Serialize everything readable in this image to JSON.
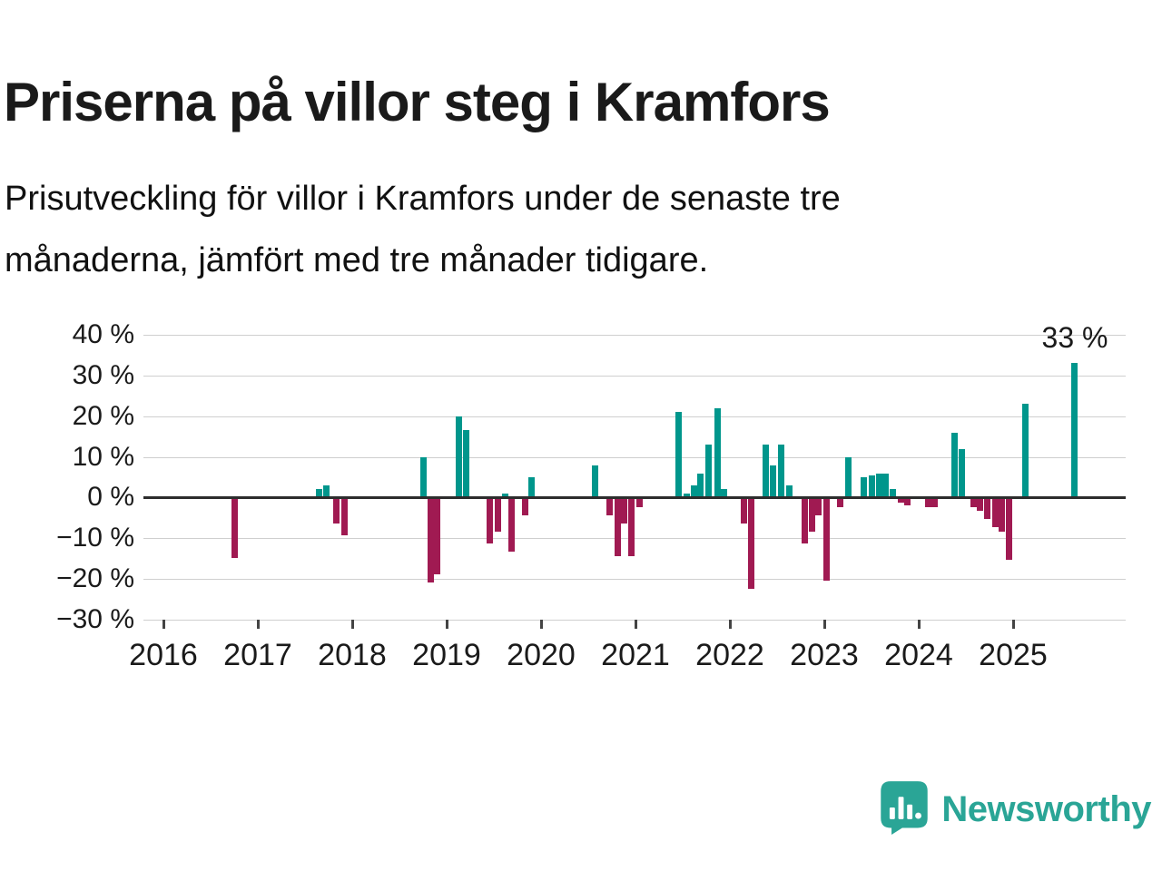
{
  "page": {
    "title": "Priserna på villor steg i Kramfors",
    "subtitle_lines": [
      "Prisutveckling för villor i Kramfors under de senaste tre",
      "månaderna, jämfört med tre månader tidigare."
    ]
  },
  "annotation": {
    "label": "33 %"
  },
  "brand": {
    "name": "Newsworthy"
  },
  "colors": {
    "positive": "#00968c",
    "negative": "#a01a52",
    "brand": "#2aa596",
    "grid": "#cfcfcf",
    "axis": "#2d2d2d"
  },
  "chart_data": {
    "type": "bar",
    "title": "Priserna på villor steg i Kramfors",
    "xlabel": "",
    "ylabel": "",
    "unit": "%",
    "ylim": [
      -30,
      40
    ],
    "grid": true,
    "yticks": [
      {
        "value": 40,
        "label": "40 %"
      },
      {
        "value": 30,
        "label": "30 %"
      },
      {
        "value": 20,
        "label": "20 %"
      },
      {
        "value": 10,
        "label": "10 %"
      },
      {
        "value": 0,
        "label": "0 %"
      },
      {
        "value": -10,
        "label": "−10 %"
      },
      {
        "value": -20,
        "label": "−20 %"
      },
      {
        "value": -30,
        "label": "−30 %"
      }
    ],
    "xticks": [
      {
        "value": 2016,
        "label": "2016"
      },
      {
        "value": 2017,
        "label": "2017"
      },
      {
        "value": 2018,
        "label": "2018"
      },
      {
        "value": 2019,
        "label": "2019"
      },
      {
        "value": 2020,
        "label": "2020"
      },
      {
        "value": 2021,
        "label": "2021"
      },
      {
        "value": 2022,
        "label": "2022"
      },
      {
        "value": 2023,
        "label": "2023"
      },
      {
        "value": 2024,
        "label": "2024"
      },
      {
        "value": 2025,
        "label": "2025"
      }
    ],
    "last_value_annotation": {
      "t": 2025.65,
      "v": 33,
      "label": "33 %"
    },
    "bars": [
      {
        "t": 2016.75,
        "v": -14.5
      },
      {
        "t": 2017.65,
        "v": 2
      },
      {
        "t": 2017.73,
        "v": 3
      },
      {
        "t": 2017.83,
        "v": -6
      },
      {
        "t": 2017.92,
        "v": -9
      },
      {
        "t": 2018.75,
        "v": 10
      },
      {
        "t": 2018.83,
        "v": -20.5
      },
      {
        "t": 2018.9,
        "v": -18.5
      },
      {
        "t": 2019.13,
        "v": 20
      },
      {
        "t": 2019.21,
        "v": 16.5
      },
      {
        "t": 2019.46,
        "v": -11
      },
      {
        "t": 2019.54,
        "v": -8
      },
      {
        "t": 2019.62,
        "v": 1
      },
      {
        "t": 2019.69,
        "v": -13
      },
      {
        "t": 2019.83,
        "v": -4
      },
      {
        "t": 2019.9,
        "v": 5
      },
      {
        "t": 2020.57,
        "v": 8
      },
      {
        "t": 2020.73,
        "v": -4
      },
      {
        "t": 2020.81,
        "v": -14
      },
      {
        "t": 2020.88,
        "v": -6
      },
      {
        "t": 2020.96,
        "v": -14
      },
      {
        "t": 2021.04,
        "v": -2
      },
      {
        "t": 2021.46,
        "v": 21
      },
      {
        "t": 2021.54,
        "v": 1
      },
      {
        "t": 2021.62,
        "v": 3
      },
      {
        "t": 2021.69,
        "v": 6
      },
      {
        "t": 2021.77,
        "v": 13
      },
      {
        "t": 2021.87,
        "v": 22
      },
      {
        "t": 2021.94,
        "v": 2
      },
      {
        "t": 2022.15,
        "v": -6
      },
      {
        "t": 2022.23,
        "v": -22
      },
      {
        "t": 2022.38,
        "v": 13
      },
      {
        "t": 2022.46,
        "v": 8
      },
      {
        "t": 2022.54,
        "v": 13
      },
      {
        "t": 2022.63,
        "v": 3
      },
      {
        "t": 2022.79,
        "v": -11
      },
      {
        "t": 2022.87,
        "v": -8
      },
      {
        "t": 2022.94,
        "v": -4
      },
      {
        "t": 2023.02,
        "v": -20
      },
      {
        "t": 2023.17,
        "v": -2
      },
      {
        "t": 2023.25,
        "v": 10
      },
      {
        "t": 2023.42,
        "v": 5
      },
      {
        "t": 2023.5,
        "v": 5.5
      },
      {
        "t": 2023.58,
        "v": 6
      },
      {
        "t": 2023.65,
        "v": 6
      },
      {
        "t": 2023.73,
        "v": 2
      },
      {
        "t": 2023.81,
        "v": -1
      },
      {
        "t": 2023.88,
        "v": -1.5
      },
      {
        "t": 2024.1,
        "v": -2
      },
      {
        "t": 2024.17,
        "v": -2
      },
      {
        "t": 2024.38,
        "v": 16
      },
      {
        "t": 2024.46,
        "v": 12
      },
      {
        "t": 2024.58,
        "v": -2
      },
      {
        "t": 2024.65,
        "v": -3
      },
      {
        "t": 2024.73,
        "v": -5
      },
      {
        "t": 2024.81,
        "v": -7
      },
      {
        "t": 2024.88,
        "v": -8
      },
      {
        "t": 2024.96,
        "v": -15
      },
      {
        "t": 2025.13,
        "v": 23
      },
      {
        "t": 2025.65,
        "v": 33
      }
    ]
  }
}
